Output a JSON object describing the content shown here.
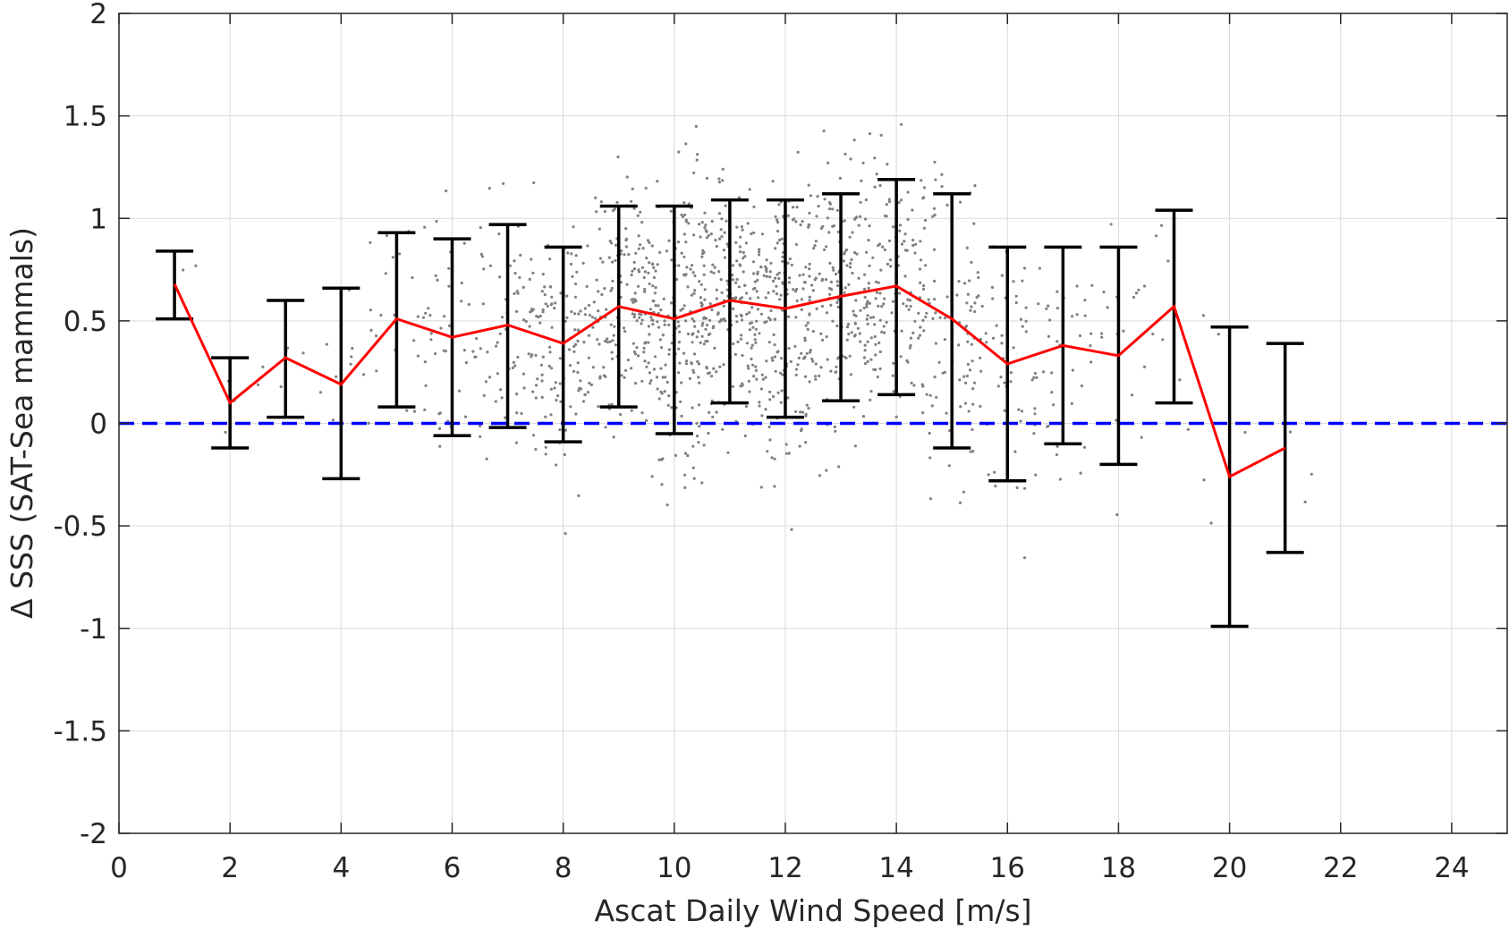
{
  "chart_data": {
    "type": "scatter",
    "title": "",
    "xlabel": "Ascat Daily Wind Speed [m/s]",
    "ylabel": "Δ SSS (SAT-Sea mammals)",
    "xlim": [
      0,
      25
    ],
    "ylim": [
      -2,
      2
    ],
    "xticks": [
      0,
      2,
      4,
      6,
      8,
      10,
      12,
      14,
      16,
      18,
      20,
      22,
      24
    ],
    "xtick_labels": [
      "0",
      "2",
      "4",
      "6",
      "8",
      "10",
      "12",
      "14",
      "16",
      "18",
      "20",
      "22",
      "24"
    ],
    "yticks": [
      2,
      1.5,
      1,
      0.5,
      0,
      -0.5,
      -1,
      -1.5,
      -2
    ],
    "ytick_labels": [
      "2",
      "1.5",
      "1",
      "0.5",
      "0",
      "-0.5",
      "-1",
      "-1.5",
      "-2"
    ],
    "grid": true,
    "series": [
      {
        "kind": "scatter-cloud",
        "color": "#808080",
        "description_x_range": [
          1,
          21.5
        ],
        "note": "individual match-up points (thousands), concentrated between 6 and 16 m/s"
      },
      {
        "kind": "line-with-errorbars",
        "color": "#ff0000",
        "errorbar_color": "#000000",
        "x": [
          1,
          2,
          3,
          4,
          5,
          6,
          7,
          8,
          9,
          10,
          11,
          12,
          13,
          14,
          15,
          16,
          17,
          18,
          19,
          20,
          21
        ],
        "mean": [
          0.68,
          0.1,
          0.32,
          0.19,
          0.51,
          0.42,
          0.48,
          0.39,
          0.57,
          0.51,
          0.6,
          0.56,
          0.62,
          0.67,
          0.51,
          0.29,
          0.38,
          0.33,
          0.57,
          -0.26,
          -0.12
        ],
        "upper": [
          0.84,
          0.32,
          0.6,
          0.66,
          0.93,
          0.9,
          0.97,
          0.86,
          1.06,
          1.06,
          1.09,
          1.09,
          1.12,
          1.19,
          1.12,
          0.86,
          0.86,
          0.86,
          1.04,
          0.47,
          0.39
        ],
        "lower": [
          0.51,
          -0.12,
          0.03,
          -0.27,
          0.08,
          -0.06,
          -0.02,
          -0.09,
          0.08,
          -0.05,
          0.1,
          0.03,
          0.11,
          0.14,
          -0.12,
          -0.28,
          -0.1,
          -0.2,
          0.1,
          -0.99,
          -0.63
        ]
      },
      {
        "kind": "reference-line",
        "y": 0,
        "color": "#0000ff",
        "style": "dashed"
      }
    ]
  }
}
